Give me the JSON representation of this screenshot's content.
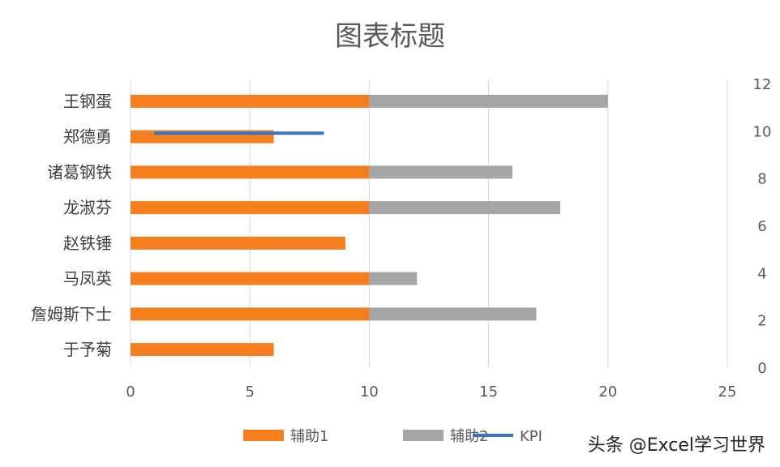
{
  "chart_data": {
    "type": "bar",
    "orientation": "horizontal",
    "title": "图表标题",
    "categories": [
      "王钢蛋",
      "郑德勇",
      "诸葛钢铁",
      "龙淑芬",
      "赵铁锤",
      "马凤英",
      "詹姆斯下士",
      "于予菊"
    ],
    "series": [
      {
        "name": "辅助1",
        "color": "#F57F1E",
        "values": [
          10,
          6,
          10,
          10,
          9,
          10,
          10,
          6
        ]
      },
      {
        "name": "辅助2",
        "color": "#A5A5A5",
        "values": [
          10,
          0,
          6,
          8,
          0,
          2,
          7,
          0
        ]
      }
    ],
    "kpi_line": {
      "name": "KPI",
      "color": "#3A73C6",
      "x": [
        1,
        8.1
      ],
      "y": [
        9.9,
        9.9
      ]
    },
    "x_axis": {
      "ticks": [
        0,
        5,
        10,
        15,
        20,
        25
      ],
      "range": [
        0,
        25
      ]
    },
    "y2_axis": {
      "ticks": [
        0,
        2,
        4,
        6,
        8,
        10,
        12
      ],
      "range": [
        0,
        12
      ]
    },
    "grid": true,
    "legend": "bottom"
  },
  "watermark": "头条 @Excel学习世界"
}
